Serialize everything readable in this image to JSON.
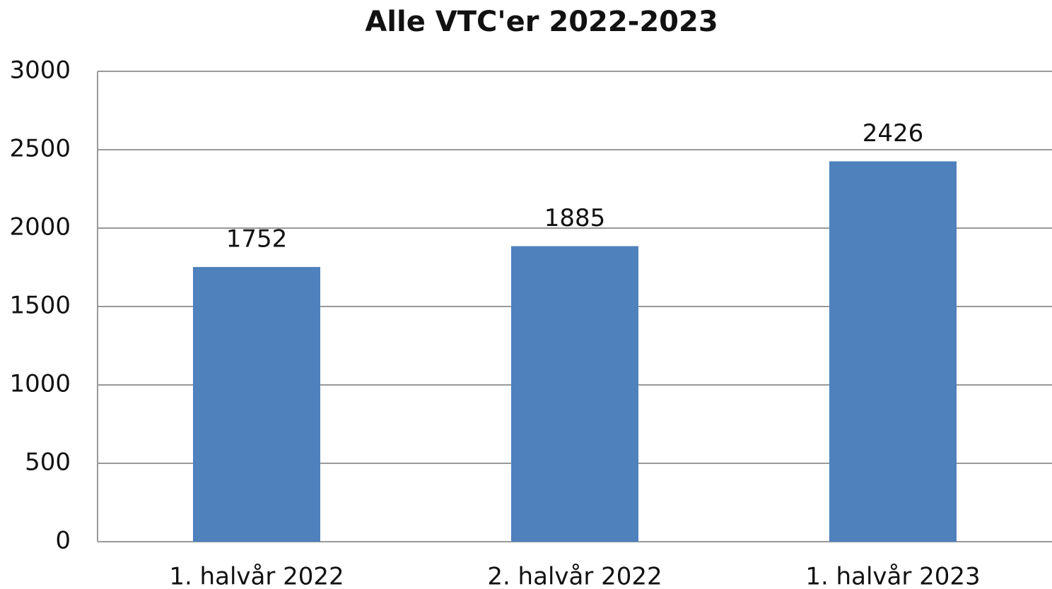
{
  "chart_data": {
    "type": "bar",
    "title": "Alle VTC'er 2022-2023",
    "categories": [
      "1. halvår 2022",
      "2. halvår 2022",
      "1. halvår 2023"
    ],
    "values": [
      1752,
      1885,
      2426
    ],
    "color": "#4f81bd",
    "ylim": [
      0,
      3000
    ],
    "yticks": [
      0,
      500,
      1000,
      1500,
      2000,
      2500,
      3000
    ],
    "grid": true
  }
}
